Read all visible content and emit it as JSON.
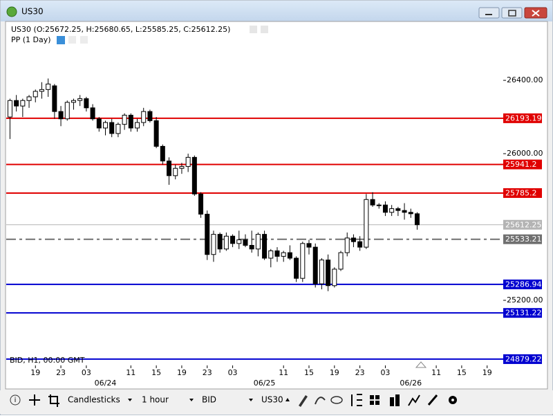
{
  "window": {
    "title": "US30"
  },
  "toolbar": {
    "chart_type": "Candlesticks",
    "timeframe": "1 hour",
    "price": "BID",
    "symbol": "US30"
  },
  "chart_data": {
    "type": "candlestick",
    "title": "US30 (O:25672.25, H:25680.65, L:25585.25, C:25612.25)",
    "subtitle": "PP (1 Day)",
    "annotation": "BID, H1, 00:00 GMT",
    "up_color": "#ffffff",
    "down_color": "#000000",
    "x": [
      0,
      1,
      2,
      3,
      4,
      5,
      6,
      7,
      8,
      9,
      10,
      11,
      12,
      13,
      14,
      15,
      16,
      17,
      18,
      19,
      20,
      21,
      22,
      23,
      24,
      25,
      26,
      27,
      28,
      29,
      30,
      31,
      32,
      33,
      34,
      35,
      36,
      37,
      38,
      39,
      40,
      41,
      42,
      43,
      44,
      45,
      46,
      47,
      48,
      49,
      50,
      51,
      52,
      53,
      54,
      55,
      56,
      57,
      58,
      59,
      60,
      61,
      62,
      63,
      64
    ],
    "open": [
      26200,
      26290,
      26260,
      26290,
      26310,
      26340,
      26350,
      26370,
      26230,
      26190,
      26280,
      26290,
      26300,
      26250,
      26190,
      26140,
      26170,
      26110,
      26160,
      26210,
      26140,
      26170,
      26230,
      26180,
      26040,
      25960,
      25880,
      25920,
      25930,
      25980,
      25780,
      25670,
      25450,
      25560,
      25480,
      25550,
      25510,
      25530,
      25500,
      25480,
      25560,
      25430,
      25470,
      25440,
      25460,
      25430,
      25320,
      25510,
      25490,
      25290,
      25420,
      25280,
      25370,
      25460,
      25540,
      25520,
      25490,
      25750,
      25720,
      25720,
      25680,
      25700,
      25690,
      25680,
      25672.25
    ],
    "high": [
      26300,
      26320,
      26300,
      26320,
      26350,
      26390,
      26410,
      26380,
      26260,
      26290,
      26300,
      26320,
      26310,
      26270,
      26200,
      26180,
      26190,
      26170,
      26220,
      26220,
      26190,
      26250,
      26240,
      26200,
      26050,
      25980,
      25940,
      25950,
      26000,
      25990,
      25790,
      25690,
      25580,
      25570,
      25570,
      25560,
      25580,
      25560,
      25580,
      25570,
      25580,
      25480,
      25490,
      25470,
      25500,
      25440,
      25520,
      25530,
      25510,
      25430,
      25450,
      25380,
      25470,
      25570,
      25560,
      25550,
      25780,
      25790,
      25730,
      25740,
      25720,
      25710,
      25730,
      25700,
      25680.65
    ],
    "low": [
      26080,
      26230,
      26200,
      26250,
      26280,
      26300,
      26310,
      26190,
      26150,
      26180,
      26240,
      26260,
      26230,
      26180,
      26120,
      26100,
      26090,
      26090,
      26130,
      26120,
      26120,
      26150,
      26170,
      26030,
      25940,
      25830,
      25860,
      25890,
      25900,
      25770,
      25650,
      25420,
      25410,
      25460,
      25470,
      25490,
      25480,
      25490,
      25460,
      25440,
      25420,
      25380,
      25410,
      25410,
      25420,
      25300,
      25300,
      25450,
      25270,
      25260,
      25250,
      25270,
      25360,
      25440,
      25490,
      25470,
      25480,
      25710,
      25700,
      25660,
      25660,
      25660,
      25640,
      25650,
      25585.25
    ],
    "close": [
      26290,
      26260,
      26290,
      26310,
      26340,
      26350,
      26380,
      26230,
      26190,
      26280,
      26290,
      26300,
      26250,
      26190,
      26140,
      26170,
      26110,
      26160,
      26210,
      26140,
      26170,
      26230,
      26180,
      26040,
      25960,
      25880,
      25920,
      25930,
      25980,
      25780,
      25670,
      25450,
      25560,
      25480,
      25550,
      25510,
      25530,
      25500,
      25480,
      25560,
      25430,
      25470,
      25440,
      25460,
      25430,
      25320,
      25510,
      25490,
      25290,
      25420,
      25280,
      25370,
      25460,
      25540,
      25520,
      25490,
      25750,
      25720,
      25720,
      25680,
      25700,
      25690,
      25680,
      25672.25,
      25612.25
    ],
    "xlim": [
      -0.7,
      78.4
    ],
    "ylim": [
      24845,
      26725
    ],
    "yticks": [
      {
        "value": 26400,
        "label": "26400.00"
      },
      {
        "value": 26000,
        "label": "26000.00"
      },
      {
        "value": 25200,
        "label": "25200.00"
      }
    ],
    "xticks": [
      {
        "value": 4,
        "label": "19"
      },
      {
        "value": 8,
        "label": "23"
      },
      {
        "value": 12,
        "label": "03"
      },
      {
        "value": 19,
        "label": "11"
      },
      {
        "value": 23,
        "label": "15"
      },
      {
        "value": 27,
        "label": "19"
      },
      {
        "value": 31,
        "label": "23"
      },
      {
        "value": 35,
        "label": "03"
      },
      {
        "value": 43,
        "label": "11"
      },
      {
        "value": 47,
        "label": "15"
      },
      {
        "value": 51,
        "label": "19"
      },
      {
        "value": 55,
        "label": "23"
      },
      {
        "value": 59,
        "label": "03"
      },
      {
        "value": 67,
        "label": "11"
      },
      {
        "value": 71,
        "label": "15"
      },
      {
        "value": 75,
        "label": "19"
      }
    ],
    "date_ticks": [
      {
        "value": 15,
        "label": "06/24"
      },
      {
        "value": 40,
        "label": "06/25"
      },
      {
        "value": 63,
        "label": "06/26"
      }
    ],
    "levels": [
      {
        "value": 26193.19,
        "color": "#e00000",
        "dash": "solid"
      },
      {
        "value": 25941.2,
        "color": "#e00000",
        "dash": "solid"
      },
      {
        "value": 25785.2,
        "color": "#e00000",
        "dash": "solid"
      },
      {
        "value": 25612.25,
        "color": "#b4b4b4",
        "dash": "solid"
      },
      {
        "value": 25533.21,
        "color": "#707070",
        "dash": "dashdot"
      },
      {
        "value": 25286.94,
        "color": "#0000d0",
        "dash": "solid"
      },
      {
        "value": 25131.22,
        "color": "#0000d0",
        "dash": "solid"
      },
      {
        "value": 24879.22,
        "color": "#0000d0",
        "dash": "solid"
      }
    ]
  }
}
